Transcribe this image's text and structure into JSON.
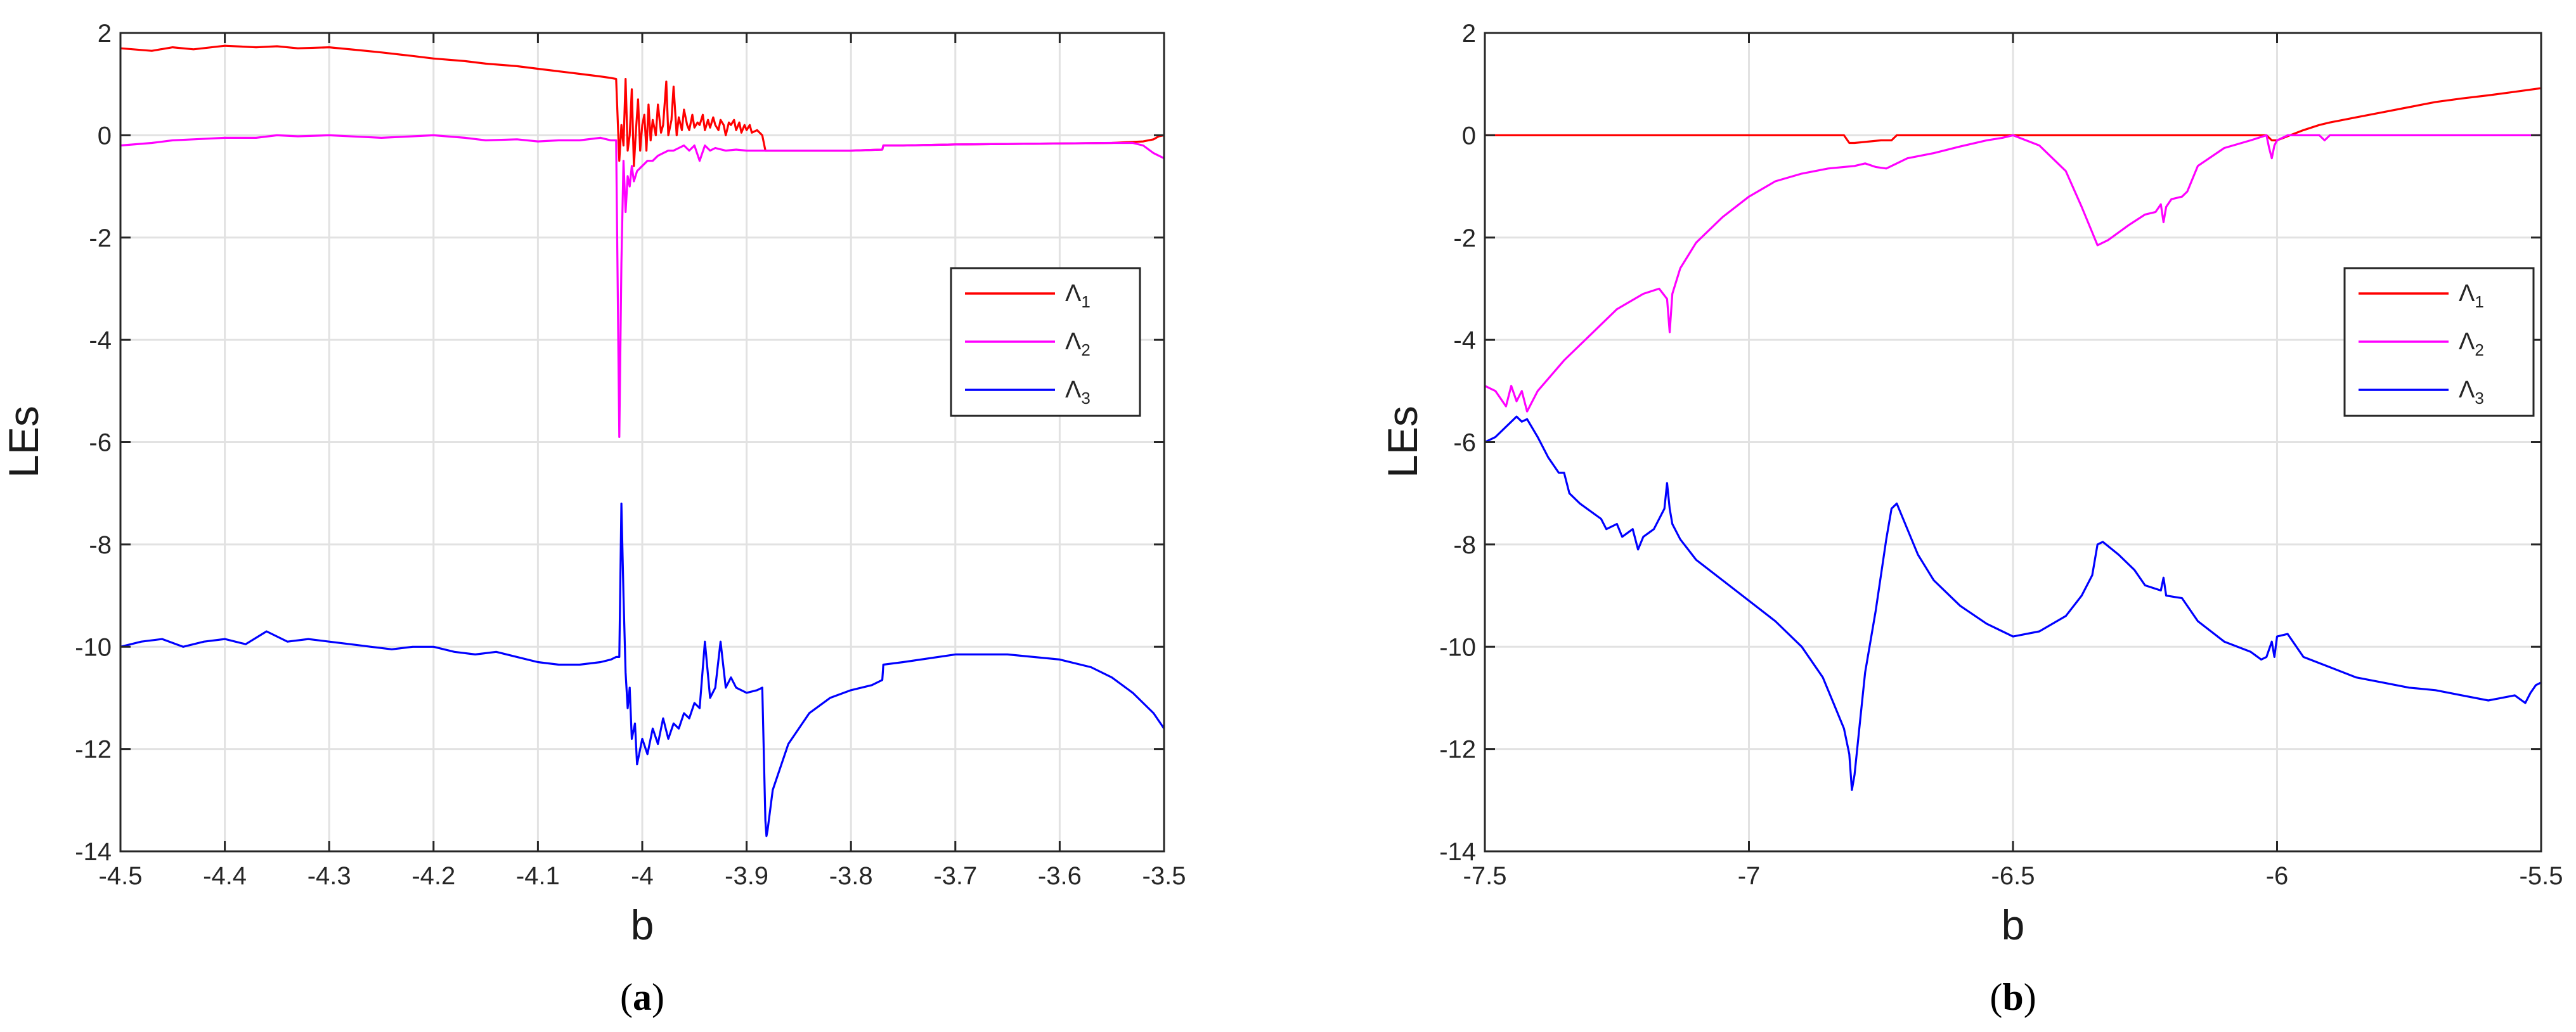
{
  "chart_data": [
    {
      "type": "line",
      "panel_label": "a",
      "xlabel": "b",
      "ylabel": "LEs",
      "xlim": [
        -4.5,
        -3.5
      ],
      "ylim": [
        -14,
        2
      ],
      "xticks": [
        -4.5,
        -4.4,
        -4.3,
        -4.2,
        -4.1,
        -4,
        -3.9,
        -3.8,
        -3.7,
        -3.6,
        -3.5
      ],
      "xtick_labels": [
        "-4.5",
        "-4.4",
        "-4.3",
        "-4.2",
        "-4.1",
        "-4",
        "-3.9",
        "-3.8",
        "-3.7",
        "-3.6",
        "-3.5"
      ],
      "yticks": [
        -14,
        -12,
        -10,
        -8,
        -6,
        -4,
        -2,
        0,
        2
      ],
      "ytick_labels": [
        "-14",
        "-12",
        "-10",
        "-8",
        "-6",
        "-4",
        "-2",
        "0",
        "2"
      ],
      "grid": true,
      "legend_position": "right",
      "series": [
        {
          "name": "Λ1",
          "symbol": "Λ",
          "sub": "1",
          "color": "#ff0000",
          "x": [
            -4.5,
            -4.47,
            -4.45,
            -4.43,
            -4.4,
            -4.37,
            -4.35,
            -4.33,
            -4.3,
            -4.27,
            -4.25,
            -4.22,
            -4.2,
            -4.17,
            -4.15,
            -4.12,
            -4.1,
            -4.08,
            -4.06,
            -4.04,
            -4.03,
            -4.025,
            -4.022,
            -4.02,
            -4.018,
            -4.016,
            -4.014,
            -4.012,
            -4.01,
            -4.008,
            -4.006,
            -4.004,
            -4.002,
            -4.0,
            -3.998,
            -3.996,
            -3.994,
            -3.992,
            -3.99,
            -3.987,
            -3.985,
            -3.982,
            -3.98,
            -3.977,
            -3.975,
            -3.972,
            -3.97,
            -3.967,
            -3.965,
            -3.962,
            -3.96,
            -3.957,
            -3.955,
            -3.952,
            -3.95,
            -3.947,
            -3.945,
            -3.942,
            -3.94,
            -3.937,
            -3.935,
            -3.932,
            -3.93,
            -3.927,
            -3.925,
            -3.922,
            -3.92,
            -3.917,
            -3.915,
            -3.912,
            -3.91,
            -3.907,
            -3.905,
            -3.902,
            -3.9,
            -3.897,
            -3.895,
            -3.89,
            -3.885,
            -3.882,
            -3.88,
            -3.85,
            -3.8,
            -3.77,
            -3.769,
            -3.75,
            -3.7,
            -3.65,
            -3.6,
            -3.55,
            -3.52,
            -3.51,
            -3.505,
            -3.5
          ],
          "y": [
            1.7,
            1.65,
            1.72,
            1.68,
            1.75,
            1.72,
            1.74,
            1.7,
            1.72,
            1.66,
            1.62,
            1.55,
            1.5,
            1.45,
            1.4,
            1.35,
            1.3,
            1.25,
            1.2,
            1.15,
            1.12,
            1.1,
            -0.5,
            0.2,
            -0.2,
            1.1,
            -0.3,
            0.0,
            0.9,
            -0.6,
            0.1,
            0.7,
            -0.3,
            0.2,
            0.4,
            -0.3,
            0.6,
            -0.1,
            0.3,
            0.0,
            0.6,
            0.05,
            0.2,
            1.05,
            0.0,
            0.3,
            0.95,
            0.0,
            0.35,
            0.1,
            0.5,
            0.2,
            0.1,
            0.4,
            0.15,
            0.25,
            0.2,
            0.4,
            0.1,
            0.3,
            0.15,
            0.35,
            0.2,
            0.1,
            0.3,
            0.2,
            0.0,
            0.25,
            0.2,
            0.3,
            0.1,
            0.25,
            0.05,
            0.2,
            0.1,
            0.2,
            0.05,
            0.1,
            0.0,
            -0.3,
            -0.3,
            -0.3,
            -0.3,
            -0.28,
            -0.2,
            -0.2,
            -0.18,
            -0.17,
            -0.16,
            -0.15,
            -0.12,
            -0.08,
            -0.02,
            0.0
          ]
        },
        {
          "name": "Λ2",
          "symbol": "Λ",
          "sub": "2",
          "color": "#ff00ff",
          "x": [
            -4.5,
            -4.47,
            -4.45,
            -4.43,
            -4.4,
            -4.37,
            -4.35,
            -4.33,
            -4.3,
            -4.27,
            -4.25,
            -4.22,
            -4.2,
            -4.17,
            -4.15,
            -4.12,
            -4.1,
            -4.08,
            -4.06,
            -4.04,
            -4.03,
            -4.025,
            -4.022,
            -4.02,
            -4.018,
            -4.016,
            -4.014,
            -4.012,
            -4.01,
            -4.008,
            -4.005,
            -4.0,
            -3.995,
            -3.99,
            -3.985,
            -3.98,
            -3.975,
            -3.97,
            -3.965,
            -3.96,
            -3.955,
            -3.95,
            -3.945,
            -3.94,
            -3.935,
            -3.93,
            -3.92,
            -3.91,
            -3.9,
            -3.89,
            -3.882,
            -3.88,
            -3.85,
            -3.8,
            -3.77,
            -3.769,
            -3.75,
            -3.7,
            -3.65,
            -3.6,
            -3.55,
            -3.53,
            -3.52,
            -3.51,
            -3.5
          ],
          "y": [
            -0.2,
            -0.15,
            -0.1,
            -0.08,
            -0.05,
            -0.05,
            0.0,
            -0.02,
            0.0,
            -0.03,
            -0.05,
            -0.02,
            0.0,
            -0.05,
            -0.1,
            -0.08,
            -0.12,
            -0.1,
            -0.1,
            -0.05,
            -0.1,
            -0.1,
            -5.9,
            -2.5,
            -0.5,
            -1.5,
            -0.8,
            -1.0,
            -0.6,
            -0.9,
            -0.7,
            -0.6,
            -0.5,
            -0.5,
            -0.4,
            -0.35,
            -0.3,
            -0.3,
            -0.25,
            -0.2,
            -0.3,
            -0.2,
            -0.5,
            -0.2,
            -0.3,
            -0.25,
            -0.3,
            -0.28,
            -0.3,
            -0.3,
            -0.3,
            -0.3,
            -0.3,
            -0.3,
            -0.28,
            -0.2,
            -0.2,
            -0.18,
            -0.17,
            -0.16,
            -0.15,
            -0.15,
            -0.2,
            -0.35,
            -0.45
          ]
        },
        {
          "name": "Λ3",
          "symbol": "Λ",
          "sub": "3",
          "color": "#0000ff",
          "x": [
            -4.5,
            -4.48,
            -4.46,
            -4.44,
            -4.42,
            -4.4,
            -4.38,
            -4.36,
            -4.34,
            -4.32,
            -4.3,
            -4.28,
            -4.26,
            -4.24,
            -4.22,
            -4.2,
            -4.18,
            -4.16,
            -4.14,
            -4.12,
            -4.1,
            -4.08,
            -4.06,
            -4.04,
            -4.03,
            -4.025,
            -4.022,
            -4.02,
            -4.018,
            -4.016,
            -4.014,
            -4.012,
            -4.01,
            -4.007,
            -4.005,
            -4.0,
            -3.995,
            -3.99,
            -3.985,
            -3.98,
            -3.975,
            -3.97,
            -3.965,
            -3.96,
            -3.955,
            -3.95,
            -3.945,
            -3.94,
            -3.935,
            -3.93,
            -3.925,
            -3.92,
            -3.915,
            -3.91,
            -3.9,
            -3.89,
            -3.885,
            -3.882,
            -3.881,
            -3.88,
            -3.875,
            -3.86,
            -3.84,
            -3.82,
            -3.8,
            -3.78,
            -3.77,
            -3.769,
            -3.75,
            -3.7,
            -3.65,
            -3.6,
            -3.57,
            -3.55,
            -3.53,
            -3.51,
            -3.5
          ],
          "y": [
            -10.0,
            -9.9,
            -9.85,
            -10.0,
            -9.9,
            -9.85,
            -9.95,
            -9.7,
            -9.9,
            -9.85,
            -9.9,
            -9.95,
            -10.0,
            -10.05,
            -10.0,
            -10.0,
            -10.1,
            -10.15,
            -10.1,
            -10.2,
            -10.3,
            -10.35,
            -10.35,
            -10.3,
            -10.25,
            -10.2,
            -10.2,
            -7.2,
            -9.0,
            -10.5,
            -11.2,
            -10.8,
            -11.8,
            -11.5,
            -12.3,
            -11.8,
            -12.1,
            -11.6,
            -11.9,
            -11.4,
            -11.8,
            -11.5,
            -11.6,
            -11.3,
            -11.4,
            -11.1,
            -11.2,
            -9.9,
            -11.0,
            -10.8,
            -9.9,
            -10.8,
            -10.6,
            -10.8,
            -10.9,
            -10.85,
            -10.8,
            -13.4,
            -13.7,
            -13.6,
            -12.8,
            -11.9,
            -11.3,
            -11.0,
            -10.85,
            -10.75,
            -10.65,
            -10.35,
            -10.3,
            -10.15,
            -10.15,
            -10.25,
            -10.4,
            -10.6,
            -10.9,
            -11.3,
            -11.6
          ]
        }
      ]
    },
    {
      "type": "line",
      "panel_label": "b",
      "xlabel": "b",
      "ylabel": "LEs",
      "xlim": [
        -7.5,
        -5.5
      ],
      "ylim": [
        -14,
        2
      ],
      "xticks": [
        -7.5,
        -7,
        -6.5,
        -6,
        -5.5
      ],
      "xtick_labels": [
        "-7.5",
        "-7",
        "-6.5",
        "-6",
        "-5.5"
      ],
      "yticks": [
        -14,
        -12,
        -10,
        -8,
        -6,
        -4,
        -2,
        0,
        2
      ],
      "ytick_labels": [
        "-14",
        "-12",
        "-10",
        "-8",
        "-6",
        "-4",
        "-2",
        "0",
        "2"
      ],
      "grid": true,
      "legend_position": "right",
      "series": [
        {
          "name": "Λ1",
          "symbol": "Λ",
          "sub": "1",
          "color": "#ff0000",
          "x": [
            -7.5,
            -7.2,
            -7.0,
            -6.82,
            -6.81,
            -6.8,
            -6.75,
            -6.73,
            -6.72,
            -6.5,
            -6.2,
            -6.02,
            -6.01,
            -6.0,
            -5.95,
            -5.92,
            -5.9,
            -5.85,
            -5.8,
            -5.75,
            -5.7,
            -5.65,
            -5.6,
            -5.55,
            -5.5
          ],
          "y": [
            0.0,
            0.0,
            0.0,
            0.0,
            -0.15,
            -0.15,
            -0.1,
            -0.1,
            0.0,
            0.0,
            0.0,
            0.0,
            -0.1,
            -0.1,
            0.1,
            0.2,
            0.25,
            0.35,
            0.45,
            0.55,
            0.65,
            0.72,
            0.78,
            0.85,
            0.92
          ]
        },
        {
          "name": "Λ2",
          "symbol": "Λ",
          "sub": "2",
          "color": "#ff00ff",
          "x": [
            -7.5,
            -7.48,
            -7.46,
            -7.45,
            -7.44,
            -7.43,
            -7.42,
            -7.4,
            -7.35,
            -7.3,
            -7.25,
            -7.2,
            -7.17,
            -7.155,
            -7.15,
            -7.145,
            -7.13,
            -7.1,
            -7.05,
            -7.0,
            -6.95,
            -6.9,
            -6.85,
            -6.8,
            -6.78,
            -6.76,
            -6.74,
            -6.72,
            -6.7,
            -6.65,
            -6.6,
            -6.55,
            -6.52,
            -6.5,
            -6.45,
            -6.4,
            -6.37,
            -6.35,
            -6.34,
            -6.32,
            -6.3,
            -6.28,
            -6.25,
            -6.23,
            -6.22,
            -6.215,
            -6.21,
            -6.2,
            -6.18,
            -6.17,
            -6.15,
            -6.1,
            -6.05,
            -6.02,
            -6.015,
            -6.01,
            -6.005,
            -6.0,
            -5.98,
            -5.95,
            -5.92,
            -5.91,
            -5.9,
            -5.85,
            -5.8,
            -5.7,
            -5.6,
            -5.5
          ],
          "y": [
            -4.9,
            -5.0,
            -5.3,
            -4.9,
            -5.2,
            -5.0,
            -5.4,
            -5.0,
            -4.4,
            -3.9,
            -3.4,
            -3.1,
            -3.0,
            -3.2,
            -3.85,
            -3.1,
            -2.6,
            -2.1,
            -1.6,
            -1.2,
            -0.9,
            -0.75,
            -0.65,
            -0.6,
            -0.55,
            -0.62,
            -0.65,
            -0.55,
            -0.45,
            -0.35,
            -0.22,
            -0.1,
            -0.05,
            0.0,
            -0.2,
            -0.7,
            -1.4,
            -1.9,
            -2.15,
            -2.05,
            -1.9,
            -1.75,
            -1.55,
            -1.5,
            -1.35,
            -1.7,
            -1.4,
            -1.25,
            -1.2,
            -1.1,
            -0.6,
            -0.25,
            -0.1,
            0.0,
            -0.25,
            -0.45,
            -0.2,
            -0.1,
            0.0,
            0.0,
            0.0,
            -0.1,
            0.0,
            0.0,
            0.0,
            0.0,
            0.0,
            0.0
          ]
        },
        {
          "name": "Λ3",
          "symbol": "Λ",
          "sub": "3",
          "color": "#0000ff",
          "x": [
            -7.5,
            -7.48,
            -7.46,
            -7.44,
            -7.43,
            -7.42,
            -7.4,
            -7.38,
            -7.36,
            -7.35,
            -7.34,
            -7.32,
            -7.3,
            -7.28,
            -7.27,
            -7.25,
            -7.24,
            -7.22,
            -7.21,
            -7.2,
            -7.18,
            -7.16,
            -7.155,
            -7.15,
            -7.145,
            -7.13,
            -7.1,
            -7.05,
            -7.0,
            -6.95,
            -6.9,
            -6.86,
            -6.84,
            -6.82,
            -6.81,
            -6.805,
            -6.8,
            -6.79,
            -6.78,
            -6.76,
            -6.74,
            -6.73,
            -6.72,
            -6.7,
            -6.68,
            -6.65,
            -6.6,
            -6.55,
            -6.52,
            -6.5,
            -6.45,
            -6.4,
            -6.37,
            -6.35,
            -6.34,
            -6.33,
            -6.3,
            -6.27,
            -6.25,
            -6.22,
            -6.215,
            -6.21,
            -6.18,
            -6.15,
            -6.1,
            -6.05,
            -6.03,
            -6.02,
            -6.01,
            -6.005,
            -6.0,
            -5.98,
            -5.95,
            -5.9,
            -5.85,
            -5.8,
            -5.75,
            -5.7,
            -5.65,
            -5.6,
            -5.55,
            -5.53,
            -5.52,
            -5.51,
            -5.5
          ],
          "y": [
            -6.0,
            -5.9,
            -5.7,
            -5.5,
            -5.6,
            -5.55,
            -5.9,
            -6.3,
            -6.6,
            -6.6,
            -7.0,
            -7.2,
            -7.35,
            -7.5,
            -7.7,
            -7.6,
            -7.85,
            -7.7,
            -8.1,
            -7.85,
            -7.7,
            -7.3,
            -6.8,
            -7.3,
            -7.6,
            -7.9,
            -8.3,
            -8.7,
            -9.1,
            -9.5,
            -10.0,
            -10.6,
            -11.1,
            -11.6,
            -12.1,
            -12.8,
            -12.5,
            -11.5,
            -10.5,
            -9.3,
            -7.9,
            -7.3,
            -7.2,
            -7.7,
            -8.2,
            -8.7,
            -9.2,
            -9.55,
            -9.7,
            -9.8,
            -9.7,
            -9.4,
            -9.0,
            -8.6,
            -8.0,
            -7.95,
            -8.2,
            -8.5,
            -8.8,
            -8.9,
            -8.65,
            -9.0,
            -9.05,
            -9.5,
            -9.9,
            -10.1,
            -10.25,
            -10.2,
            -9.9,
            -10.2,
            -9.8,
            -9.75,
            -10.2,
            -10.4,
            -10.6,
            -10.7,
            -10.8,
            -10.85,
            -10.95,
            -11.05,
            -10.95,
            -11.1,
            -10.9,
            -10.75,
            -10.7
          ]
        }
      ]
    }
  ]
}
